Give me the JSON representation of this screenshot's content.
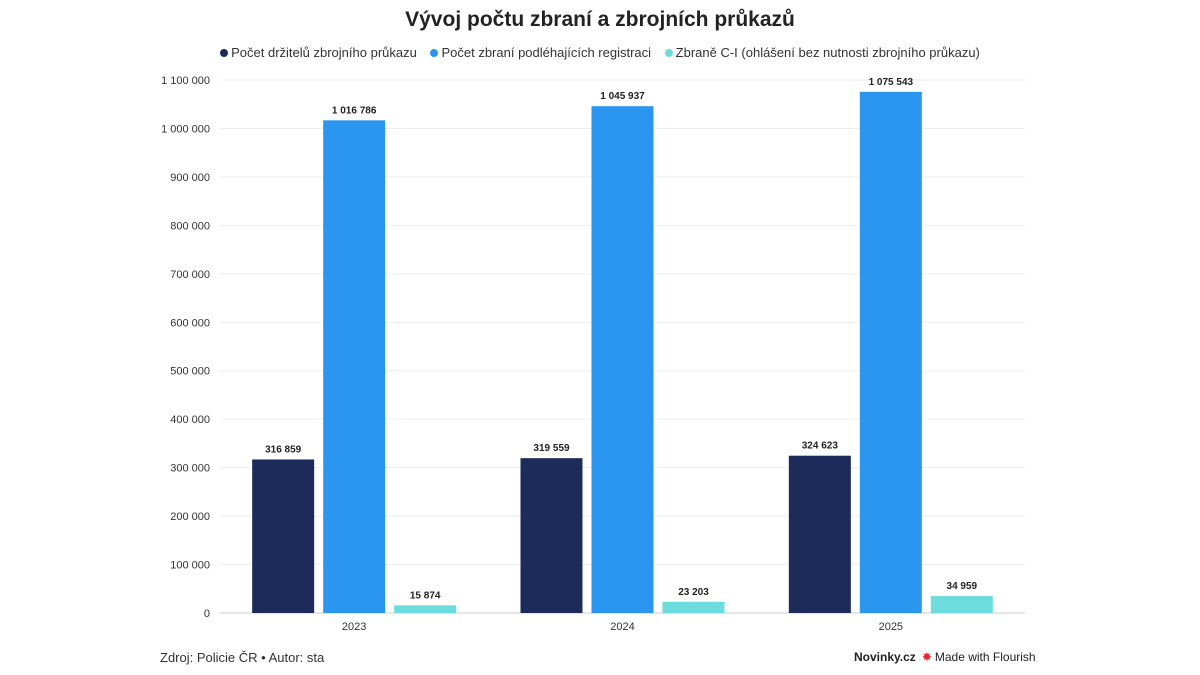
{
  "chart_data": {
    "type": "bar",
    "title": "Vývoj počtu zbraní a zbrojních průkazů",
    "categories": [
      "2023",
      "2024",
      "2025"
    ],
    "series": [
      {
        "name": "Počet držitelů zbrojního průkazu",
        "color": "#1c2b5a",
        "values": [
          316859,
          319559,
          324623
        ],
        "labels": [
          "316 859",
          "319 559",
          "324 623"
        ]
      },
      {
        "name": "Počet zbraní podléhajících registraci",
        "color": "#2b96f0",
        "values": [
          1016786,
          1045937,
          1075543
        ],
        "labels": [
          "1 016 786",
          "1 045 937",
          "1 075 543"
        ]
      },
      {
        "name": "Zbraně C-I (ohlášení bez nutnosti zbrojního průkazu)",
        "color": "#6cdcdc",
        "values": [
          15874,
          23203,
          34959
        ],
        "labels": [
          "15 874",
          "23 203",
          "34 959"
        ]
      }
    ],
    "ylim": [
      0,
      1100000
    ],
    "yticks": [
      0,
      100000,
      200000,
      300000,
      400000,
      500000,
      600000,
      700000,
      800000,
      900000,
      1000000,
      1100000
    ],
    "ytick_labels": [
      "0",
      "100 000",
      "200 000",
      "300 000",
      "400 000",
      "500 000",
      "600 000",
      "700 000",
      "800 000",
      "900 000",
      "1 000 000",
      "1 100 000"
    ],
    "grid": true,
    "legend": "top-center"
  },
  "footer": {
    "source": "Zdroj: Policie ČR • Autor: sta",
    "brand": "Novinky.cz",
    "flourish": "Made with Flourish"
  }
}
